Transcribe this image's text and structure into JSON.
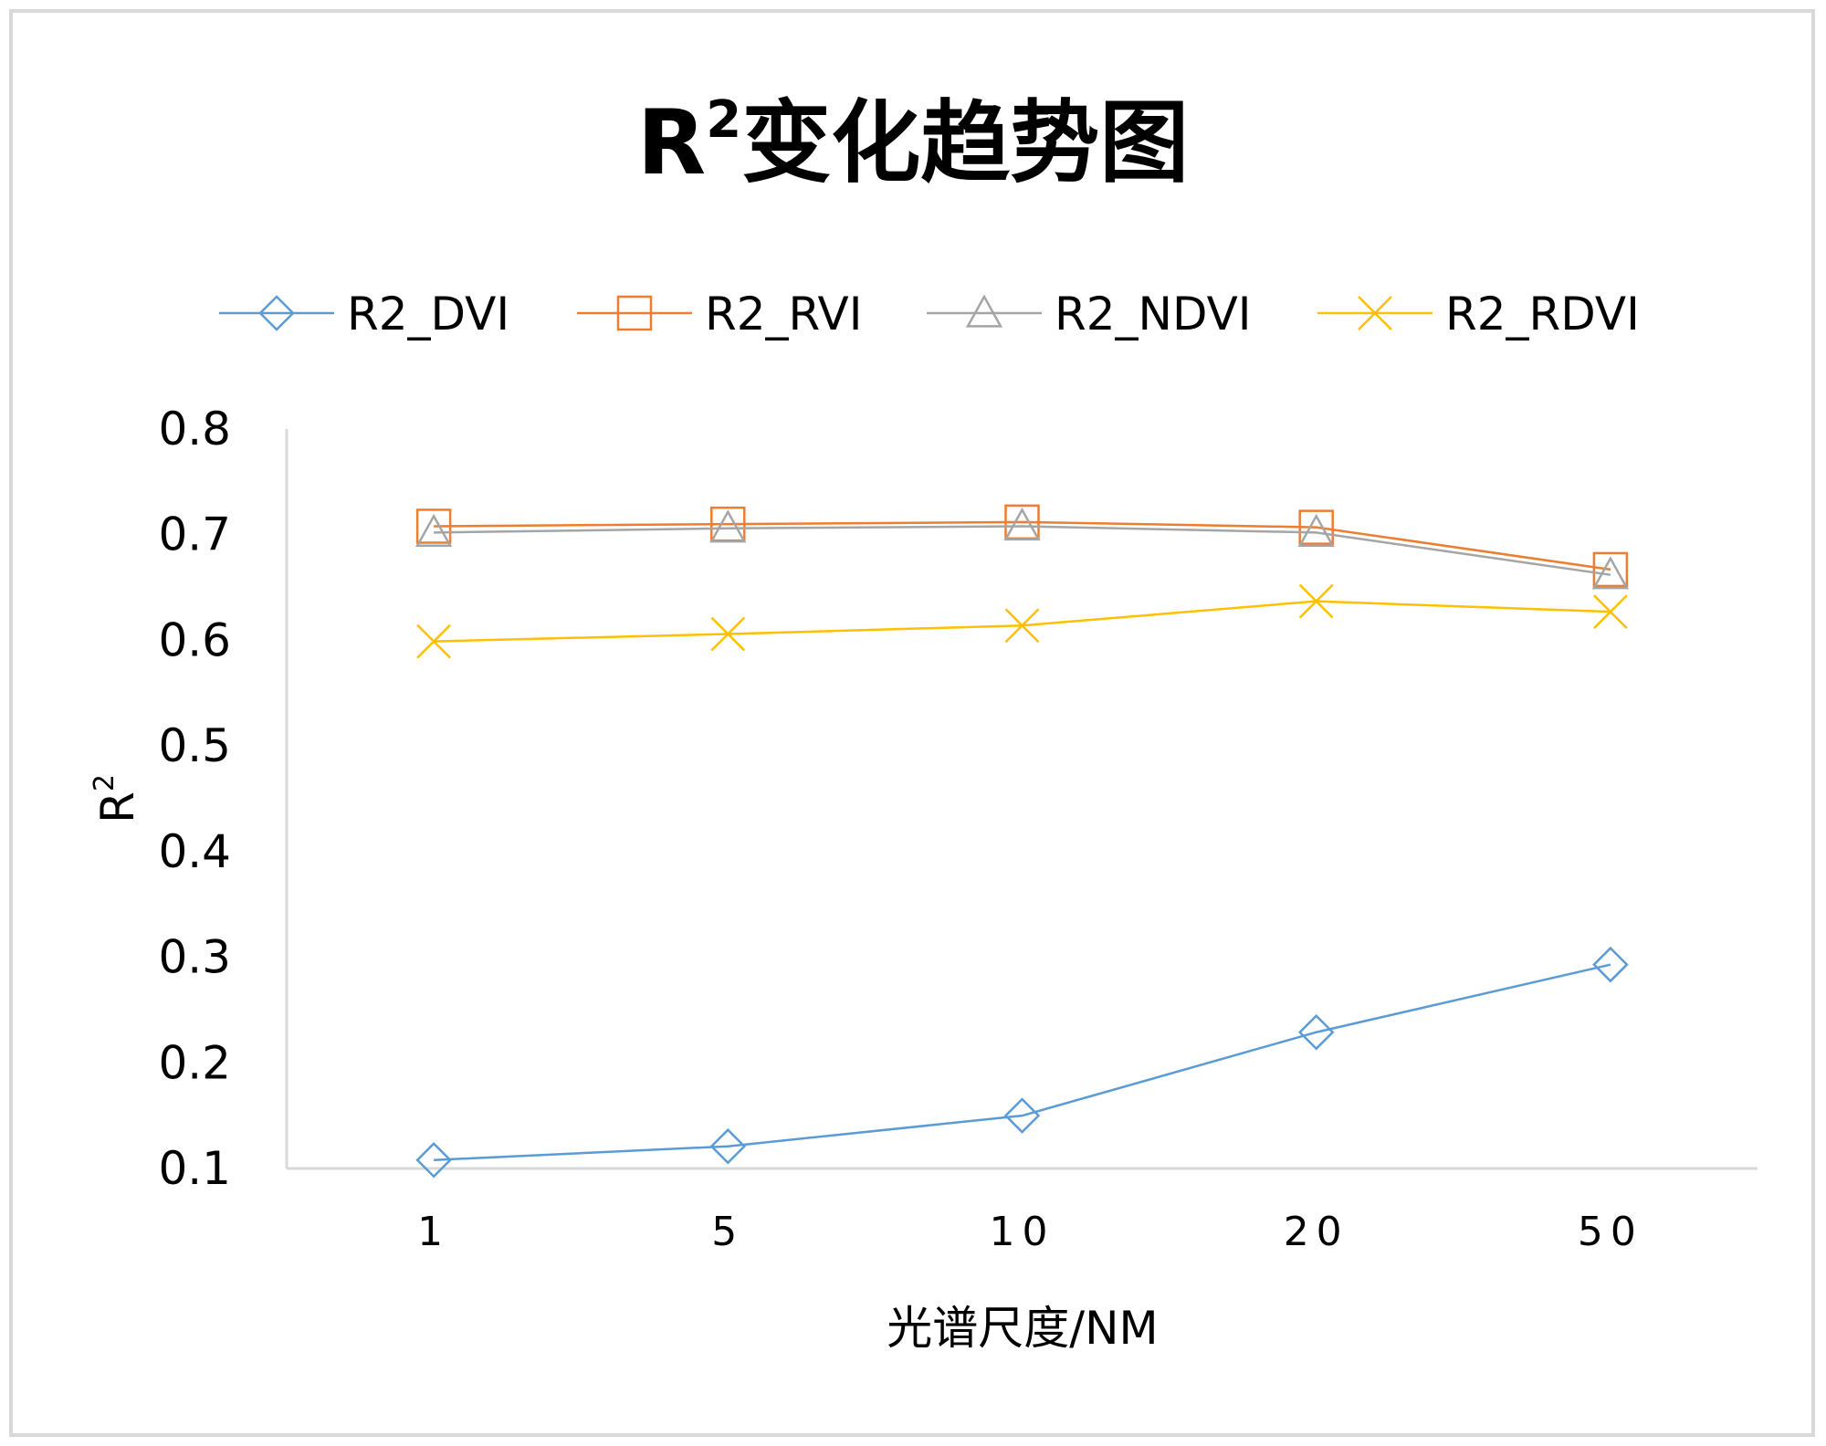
{
  "chart_data": {
    "type": "line",
    "title_main": "R",
    "title_sup": "2",
    "title_rest": "变化趋势图",
    "xlabel": "光谱尺度/NM",
    "ylabel_main": "R",
    "ylabel_sup": "2",
    "categories": [
      "1",
      "5",
      "10",
      "20",
      "50"
    ],
    "ylim": [
      0.1,
      0.8
    ],
    "yticks": [
      "0.1",
      "0.2",
      "0.3",
      "0.4",
      "0.5",
      "0.6",
      "0.7",
      "0.8"
    ],
    "grid": false,
    "legend_position": "top",
    "series": [
      {
        "name": "R2_DVI",
        "values": [
          0.108,
          0.121,
          0.15,
          0.229,
          0.293
        ],
        "color": "#5b9bd5",
        "marker": "diamond"
      },
      {
        "name": "R2_RVI",
        "values": [
          0.708,
          0.71,
          0.712,
          0.707,
          0.667
        ],
        "color": "#ed7d31",
        "marker": "square"
      },
      {
        "name": "R2_NDVI",
        "values": [
          0.702,
          0.706,
          0.708,
          0.702,
          0.662
        ],
        "color": "#a5a5a5",
        "marker": "triangle"
      },
      {
        "name": "R2_RDVI",
        "values": [
          0.599,
          0.606,
          0.614,
          0.637,
          0.627
        ],
        "color": "#ffc000",
        "marker": "x"
      }
    ]
  }
}
